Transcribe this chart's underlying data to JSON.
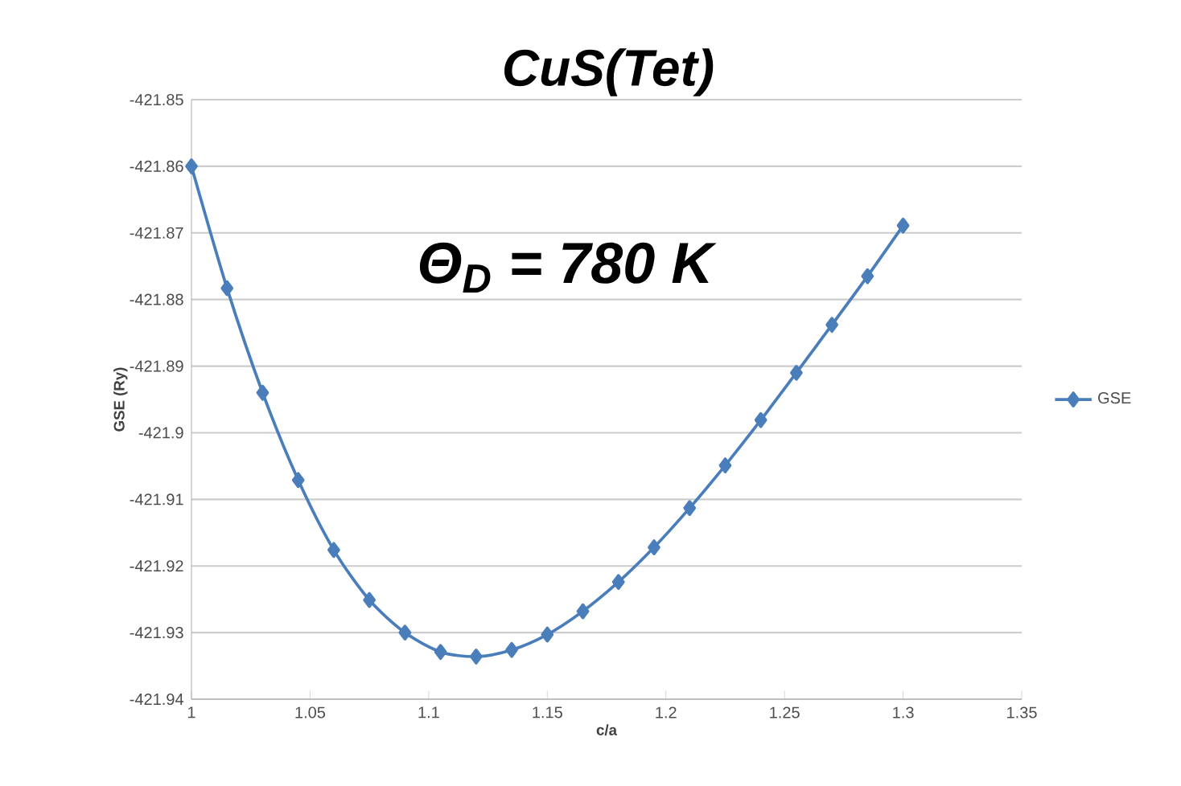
{
  "chart_data": {
    "type": "line",
    "title": "CuS(Tet)",
    "xlabel": "c/a",
    "ylabel": "GSE (Ry)",
    "annotations": [
      "Θ$_{D}$ =  780 K"
    ],
    "x": [
      1,
      1.015,
      1.03,
      1.045,
      1.06,
      1.075,
      1.09,
      1.105,
      1.12,
      1.135,
      1.15,
      1.165,
      1.18,
      1.195,
      1.21,
      1.225,
      1.24,
      1.255,
      1.27,
      1.285,
      1.3
    ],
    "series": [
      {
        "name": "GSE",
        "color": "#4a7ebb",
        "values": [
          -421.86,
          -421.8783,
          -421.894,
          -421.9071,
          -421.9176,
          -421.9251,
          -421.93,
          -421.9329,
          -421.9336,
          -421.9326,
          -421.9303,
          -421.9268,
          -421.9224,
          -421.9172,
          -421.9113,
          -421.9049,
          -421.8981,
          -421.891,
          -421.8838,
          -421.8765,
          -421.8689
        ]
      }
    ],
    "xlim": [
      1,
      1.35
    ],
    "xticks": [
      1,
      1.05,
      1.1,
      1.15,
      1.2,
      1.25,
      1.3,
      1.35
    ],
    "ylim": [
      -421.94,
      -421.85
    ],
    "yticks": [
      -421.94,
      -421.93,
      -421.92,
      -421.91,
      -421.9,
      -421.89,
      -421.88,
      -421.87,
      -421.86,
      -421.85
    ],
    "grid": "y",
    "legend": "right",
    "marker": "diamond",
    "line_style": "solid"
  }
}
